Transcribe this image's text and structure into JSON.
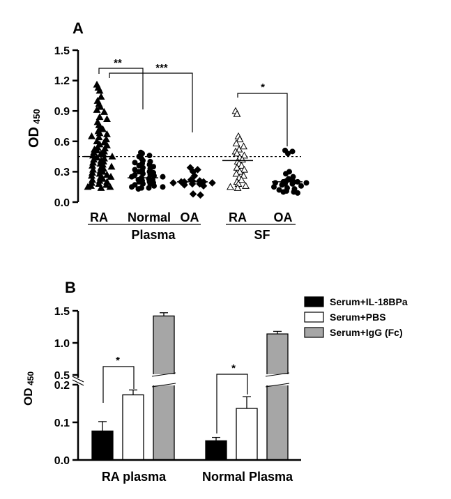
{
  "chart_data": [
    {
      "panel": "A",
      "type": "scatter",
      "ylabel": "OD",
      "ylabel_sub": "450",
      "ylim": [
        0,
        1.5
      ],
      "yticks": [
        "0.0",
        "0.3",
        "0.6",
        "0.9",
        "1.2",
        "1.5"
      ],
      "cutoff": 0.45,
      "groups": [
        {
          "label": "RA",
          "group": "Plasma",
          "marker": "triangle-filled",
          "mean": 0.45,
          "values": [
            1.16,
            1.13,
            1.1,
            1.04,
            1.0,
            0.97,
            0.94,
            0.91,
            0.89,
            0.84,
            0.82,
            0.79,
            0.76,
            0.74,
            0.72,
            0.7,
            0.68,
            0.67,
            0.65,
            0.64,
            0.62,
            0.6,
            0.59,
            0.57,
            0.56,
            0.54,
            0.53,
            0.52,
            0.51,
            0.5,
            0.49,
            0.48,
            0.47,
            0.46,
            0.45,
            0.44,
            0.43,
            0.42,
            0.41,
            0.4,
            0.39,
            0.38,
            0.37,
            0.36,
            0.35,
            0.34,
            0.33,
            0.32,
            0.31,
            0.3,
            0.29,
            0.28,
            0.27,
            0.26,
            0.25,
            0.24,
            0.23,
            0.22,
            0.21,
            0.2,
            0.19,
            0.18,
            0.17,
            0.16,
            0.15,
            0.15,
            0.14
          ]
        },
        {
          "label": "Normal",
          "group": "Plasma",
          "marker": "circle-filled",
          "mean": 0.24,
          "values": [
            0.49,
            0.48,
            0.46,
            0.45,
            0.43,
            0.41,
            0.4,
            0.39,
            0.38,
            0.37,
            0.36,
            0.35,
            0.34,
            0.33,
            0.32,
            0.31,
            0.3,
            0.3,
            0.29,
            0.28,
            0.27,
            0.27,
            0.26,
            0.25,
            0.25,
            0.24,
            0.23,
            0.22,
            0.22,
            0.21,
            0.2,
            0.2,
            0.19,
            0.18,
            0.18,
            0.17,
            0.16,
            0.15,
            0.15,
            0.14,
            0.14,
            0.13
          ]
        },
        {
          "label": "OA",
          "group": "Plasma",
          "marker": "diamond-filled",
          "mean": 0.2,
          "values": [
            0.34,
            0.32,
            0.3,
            0.26,
            0.22,
            0.21,
            0.21,
            0.2,
            0.2,
            0.2,
            0.19,
            0.19,
            0.18,
            0.18,
            0.17,
            0.16,
            0.08,
            0.07
          ]
        },
        {
          "label": "RA",
          "group": "SF",
          "marker": "triangle-open",
          "mean": 0.41,
          "values": [
            0.9,
            0.87,
            0.65,
            0.62,
            0.58,
            0.55,
            0.52,
            0.5,
            0.48,
            0.46,
            0.44,
            0.42,
            0.4,
            0.38,
            0.36,
            0.34,
            0.32,
            0.3,
            0.28,
            0.26,
            0.24,
            0.22,
            0.2,
            0.18,
            0.16,
            0.15,
            0.14
          ]
        },
        {
          "label": "OA",
          "group": "SF",
          "marker": "circle-filled",
          "mean": 0.2,
          "values": [
            0.51,
            0.5,
            0.48,
            0.3,
            0.28,
            0.25,
            0.23,
            0.22,
            0.21,
            0.2,
            0.2,
            0.2,
            0.19,
            0.19,
            0.18,
            0.18,
            0.17,
            0.16,
            0.15,
            0.14,
            0.13,
            0.12,
            0.11,
            0.1,
            0.1,
            0.09
          ]
        }
      ],
      "group_labels": [
        "Plasma",
        "SF"
      ],
      "significance": [
        "**",
        "***",
        "*"
      ]
    },
    {
      "panel": "B",
      "type": "bar",
      "ylabel": "OD",
      "ylabel_sub": "450",
      "yticks_lower": [
        "0.0",
        "0.1",
        "0.2"
      ],
      "yticks_upper": [
        "0.5",
        "1.0",
        "1.5"
      ],
      "categories": [
        "RA plasma",
        "Normal Plasma"
      ],
      "series": [
        {
          "name": "Serum+IL-18BPa",
          "color": "#000000",
          "values": [
            0.077,
            0.051
          ],
          "errors": [
            0.025,
            0.009
          ]
        },
        {
          "name": "Serum+PBS",
          "color": "#ffffff",
          "values": [
            0.173,
            0.137
          ],
          "errors": [
            0.013,
            0.031
          ]
        },
        {
          "name": "Serum+IgG (Fc)",
          "color": "#a6a6a6",
          "values": [
            1.42,
            1.14
          ],
          "errors": [
            0.05,
            0.04
          ]
        }
      ],
      "significance": [
        "*",
        "*"
      ]
    }
  ]
}
